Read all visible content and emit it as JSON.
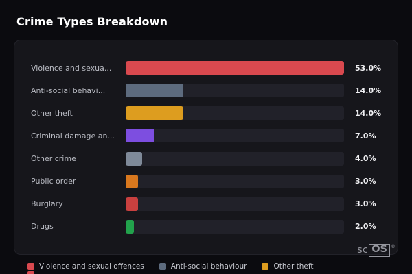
{
  "title": "Crime Types Breakdown",
  "chart_data": {
    "type": "bar",
    "orientation": "horizontal",
    "title": "Crime Types Breakdown",
    "categories": [
      "Violence and sexua...",
      "Anti-social behavi...",
      "Other theft",
      "Criminal damage an...",
      "Other crime",
      "Public order",
      "Burglary",
      "Drugs"
    ],
    "values": [
      53.0,
      14.0,
      14.0,
      7.0,
      4.0,
      3.0,
      3.0,
      2.0
    ],
    "value_labels": [
      "53.0%",
      "14.0%",
      "14.0%",
      "7.0%",
      "4.0%",
      "3.0%",
      "3.0%",
      "2.0%"
    ],
    "bar_colors": [
      "#d9494f",
      "#5d6b7e",
      "#dd9d1f",
      "#7d4ee0",
      "#7f8a99",
      "#d9781e",
      "#c9403f",
      "#22a24c"
    ],
    "track_color": "#212129",
    "xlim": [
      0,
      53
    ],
    "unit": "%",
    "grid": false,
    "legend_position": "bottom"
  },
  "legend": {
    "items": [
      {
        "label": "Violence and sexual offences",
        "color": "#d9494f"
      },
      {
        "label": "Anti-social behaviour",
        "color": "#5d6b7e"
      },
      {
        "label": "Other theft",
        "color": "#dd9d1f"
      }
    ],
    "overflow_swatch_color": "#d9494f"
  },
  "branding": {
    "prefix": "sc",
    "boxed": "OS",
    "registered": "®"
  }
}
